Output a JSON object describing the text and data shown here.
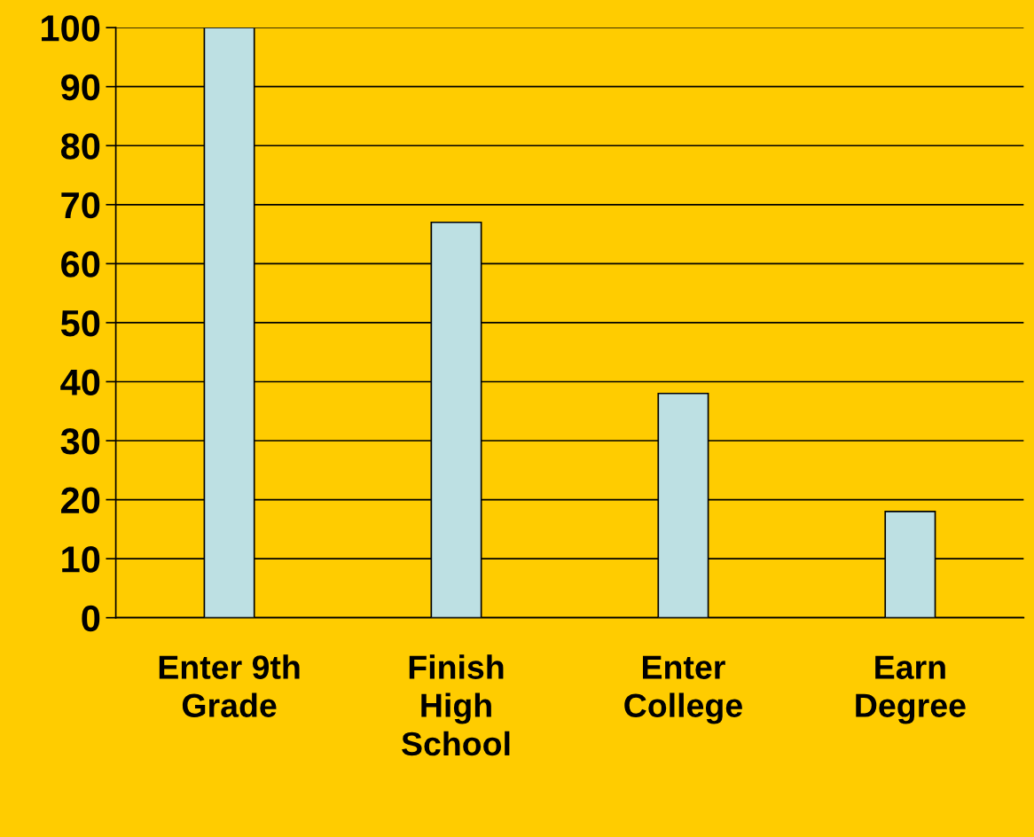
{
  "chart_data": {
    "type": "bar",
    "categories": [
      "Enter 9th\nGrade",
      "Finish\nHigh\nSchool",
      "Enter\nCollege",
      "Earn\nDegree"
    ],
    "values": [
      100,
      67,
      38,
      18
    ],
    "color": "#bde0e3",
    "ylim": [
      0,
      100
    ],
    "yticks": [
      0,
      10,
      20,
      30,
      40,
      50,
      60,
      70,
      80,
      90,
      100
    ],
    "grid": "y"
  }
}
